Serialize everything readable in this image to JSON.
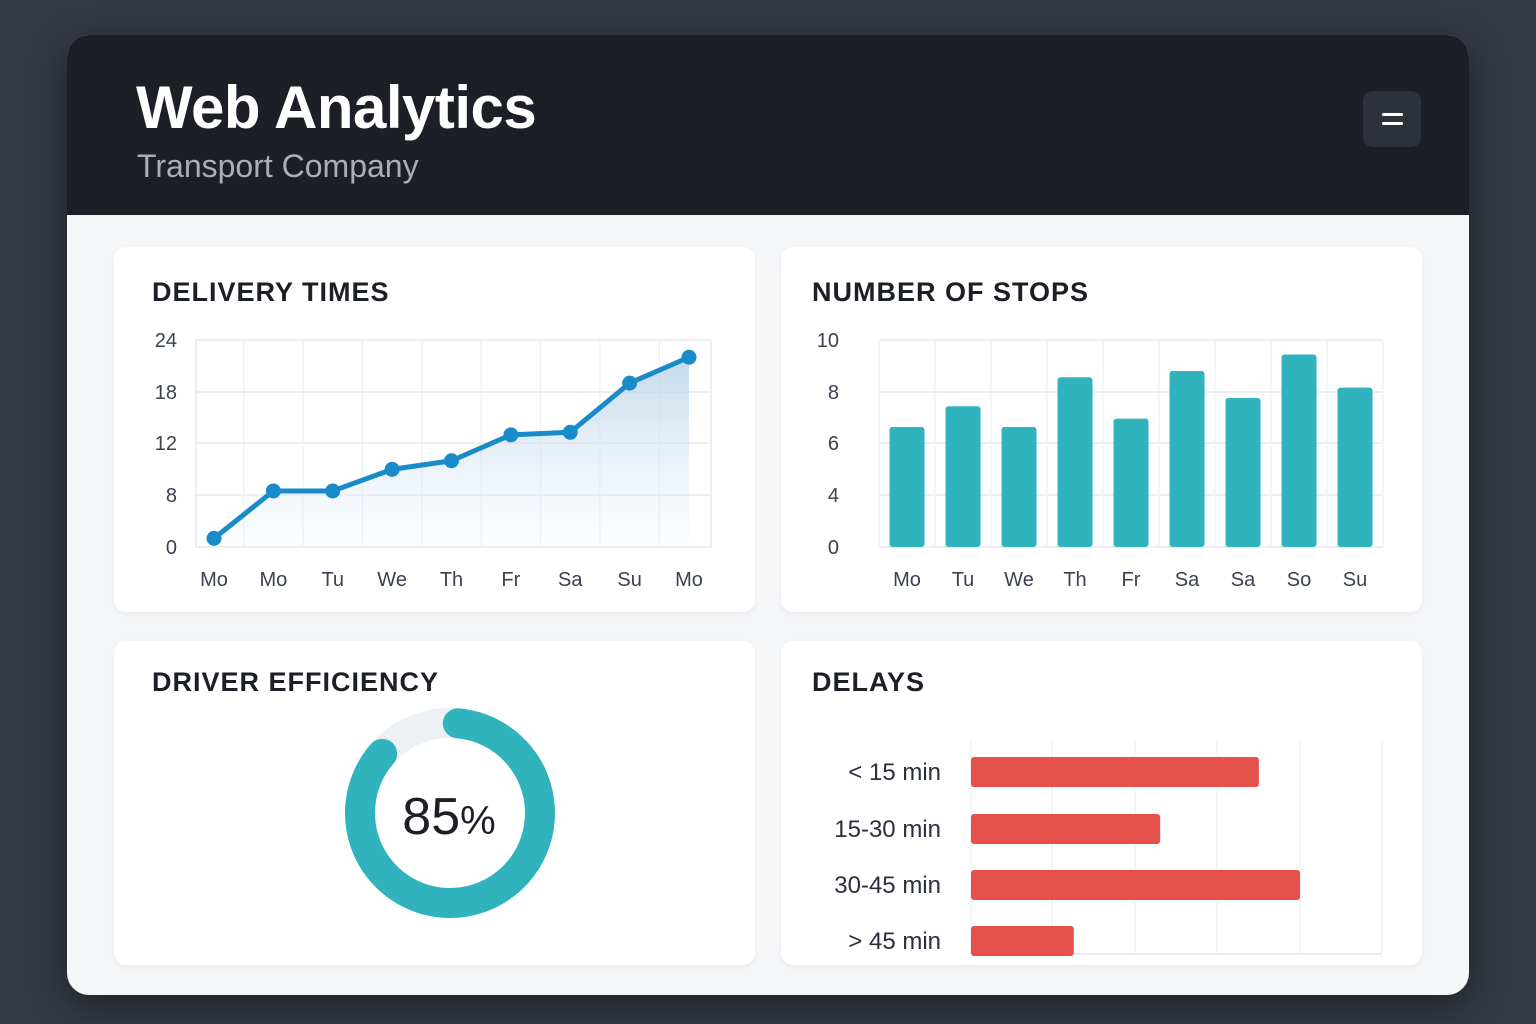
{
  "header": {
    "title": "Web Analytics",
    "subtitle": "Transport Company",
    "menu_icon": "hamburger-menu-icon"
  },
  "colors": {
    "line": "#1a8bc9",
    "bars": "#30b3bd",
    "donut": "#30b3bd",
    "delays": "#e4504a"
  },
  "chart_data": [
    {
      "type": "line",
      "title": "DELIVERY TIMES",
      "categories": [
        "Mo",
        "Mo",
        "Tu",
        "We",
        "Th",
        "Fr",
        "Sa",
        "Su",
        "Mo"
      ],
      "values": [
        1,
        6.5,
        6.5,
        9,
        10,
        13,
        13.3,
        19,
        22
      ],
      "y_ticks": [
        "0",
        "8",
        "12",
        "18",
        "24"
      ],
      "ylim": [
        0,
        24
      ],
      "grid": true,
      "area_fill": true
    },
    {
      "type": "bar",
      "title": "NUMBER OF STOPS",
      "categories": [
        "Mo",
        "Tu",
        "We",
        "Th",
        "Fr",
        "Sa",
        "Sa",
        "So",
        "Su"
      ],
      "values": [
        5.8,
        6.8,
        5.8,
        8.2,
        6.2,
        8.5,
        7.2,
        9.3,
        7.7
      ],
      "y_ticks": [
        "0",
        "4",
        "6",
        "8",
        "10"
      ],
      "ylim": [
        0,
        10
      ],
      "grid": true
    },
    {
      "type": "pie",
      "title": "DRIVER EFFICIENCY",
      "values": [
        85
      ],
      "label": "85",
      "unit": "%"
    },
    {
      "type": "bar",
      "orientation": "horizontal",
      "title": "DELAYS",
      "categories": [
        "< 15 min",
        "15-30 min",
        "30-45 min",
        "> 45 min"
      ],
      "values": [
        3.5,
        2.3,
        4.0,
        1.25
      ],
      "x_ticks": [
        "0",
        "1",
        "2",
        "3",
        "4",
        "6"
      ],
      "xlim": [
        0,
        5
      ],
      "grid": true
    }
  ]
}
